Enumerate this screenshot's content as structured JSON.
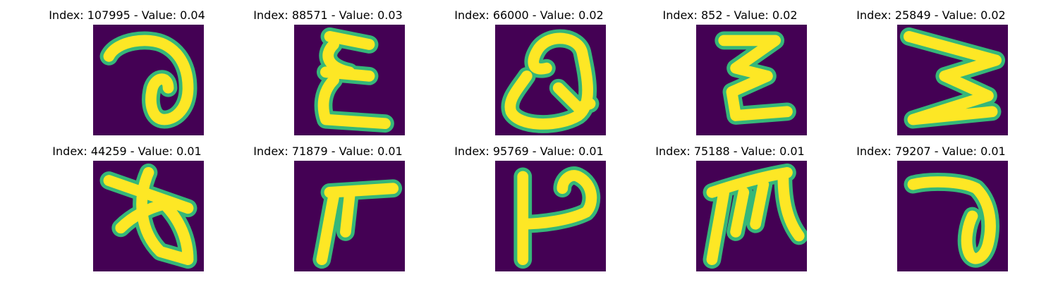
{
  "colors": {
    "background": "#440154",
    "stroke": "#fde725",
    "edge": "#35b779",
    "mid": "#21918c"
  },
  "panels": [
    {
      "title": "Index: 107995 - Value: 0.04",
      "glyph": "loop-seven-icon"
    },
    {
      "title": "Index: 88571 - Value: 0.03",
      "glyph": "xi-glyph-icon"
    },
    {
      "title": "Index: 66000 - Value: 0.02",
      "glyph": "q-loop-glyph-icon"
    },
    {
      "title": "Index: 852 - Value: 0.02",
      "glyph": "zigzag-glyph-icon"
    },
    {
      "title": "Index: 25849 - Value: 0.02",
      "glyph": "sideways-m-glyph-icon"
    },
    {
      "title": "Index: 44259 - Value: 0.01",
      "glyph": "crossed-leaf-glyph-icon"
    },
    {
      "title": "Index: 71879 - Value: 0.01",
      "glyph": "pi-like-glyph-icon"
    },
    {
      "title": "Index: 95769 - Value: 0.01",
      "glyph": "p-hook-glyph-icon"
    },
    {
      "title": "Index: 75188 - Value: 0.01",
      "glyph": "m-hook-glyph-icon"
    },
    {
      "title": "Index: 79207 - Value: 0.01",
      "glyph": "loop-seven-icon"
    }
  ]
}
